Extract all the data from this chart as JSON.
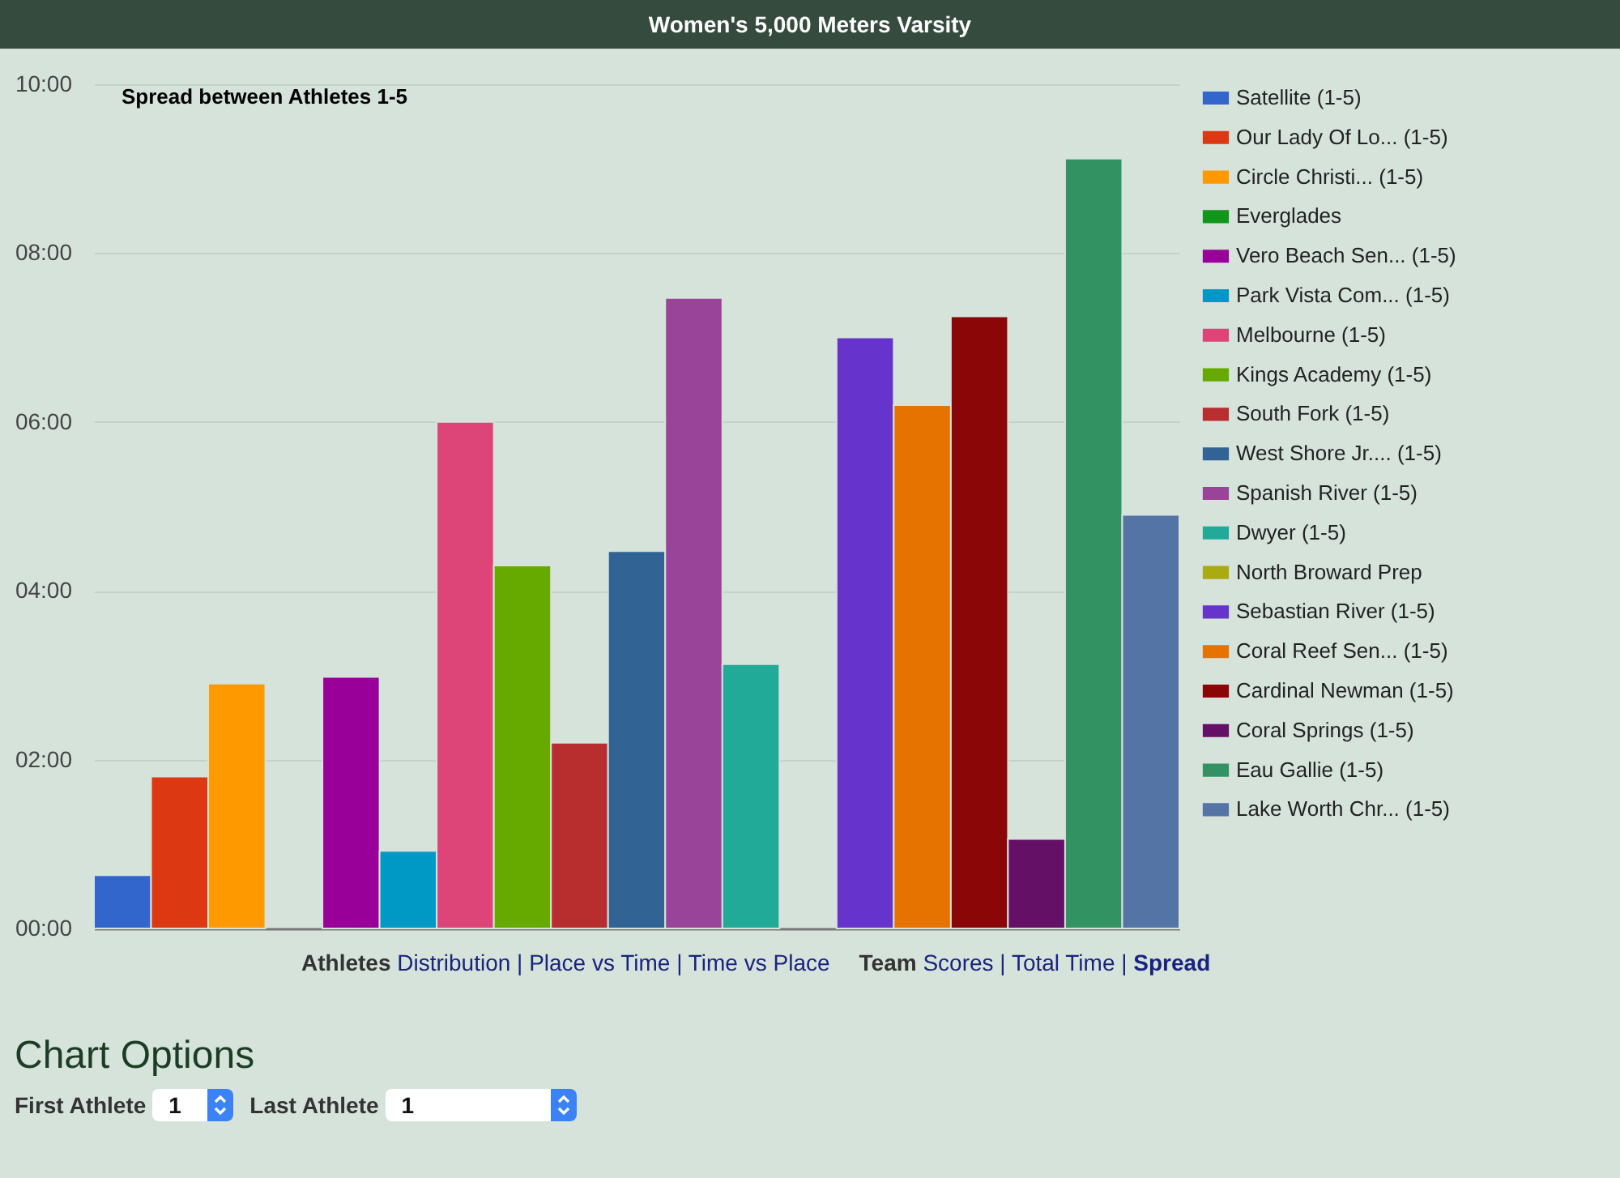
{
  "chart_data": {
    "type": "bar",
    "title": "Women's 5,000 Meters Varsity",
    "subtitle": "Spread between Athletes 1-5",
    "categories": [
      null
    ],
    "series": [
      {
        "name": "Satellite (1-5)",
        "color": "#3366cc",
        "values": [
          0.63
        ]
      },
      {
        "name": "Our Lady Of Lo... (1-5)",
        "color": "#dc3912",
        "values": [
          1.8
        ]
      },
      {
        "name": "Circle Christi... (1-5)",
        "color": "#ff9900",
        "values": [
          2.9
        ]
      },
      {
        "name": "Everglades",
        "color": "#109618",
        "values": [
          null
        ]
      },
      {
        "name": "Vero Beach Sen... (1-5)",
        "color": "#990099",
        "values": [
          2.98
        ]
      },
      {
        "name": "Park Vista Com... (1-5)",
        "color": "#0099c6",
        "values": [
          0.92
        ]
      },
      {
        "name": "Melbourne (1-5)",
        "color": "#dd4477",
        "values": [
          6.0
        ]
      },
      {
        "name": "Kings Academy (1-5)",
        "color": "#66aa00",
        "values": [
          4.3
        ]
      },
      {
        "name": "South Fork (1-5)",
        "color": "#b82e2e",
        "values": [
          2.2
        ]
      },
      {
        "name": "West Shore Jr.... (1-5)",
        "color": "#316395",
        "values": [
          4.47
        ]
      },
      {
        "name": "Spanish River (1-5)",
        "color": "#994499",
        "values": [
          7.47
        ]
      },
      {
        "name": "Dwyer (1-5)",
        "color": "#22aa99",
        "values": [
          3.13
        ]
      },
      {
        "name": "North Broward Prep",
        "color": "#aaaa11",
        "values": [
          null
        ]
      },
      {
        "name": "Sebastian River (1-5)",
        "color": "#6633cc",
        "values": [
          7.0
        ]
      },
      {
        "name": "Coral Reef Sen... (1-5)",
        "color": "#e67300",
        "values": [
          6.2
        ]
      },
      {
        "name": "Cardinal Newman (1-5)",
        "color": "#8b0707",
        "values": [
          7.25
        ]
      },
      {
        "name": "Coral Springs (1-5)",
        "color": "#651067",
        "values": [
          1.06
        ]
      },
      {
        "name": "Eau Gallie (1-5)",
        "color": "#329262",
        "values": [
          9.12
        ]
      },
      {
        "name": "Lake Worth Chr... (1-5)",
        "color": "#5574a6",
        "values": [
          4.9
        ]
      }
    ],
    "ylim": [
      0,
      10
    ],
    "yticks": [
      {
        "value": 0,
        "label": "00:00"
      },
      {
        "value": 2,
        "label": "02:00"
      },
      {
        "value": 4,
        "label": "04:00"
      },
      {
        "value": 6,
        "label": "06:00"
      },
      {
        "value": 8,
        "label": "08:00"
      },
      {
        "value": 10,
        "label": "10:00"
      }
    ],
    "grid": "y",
    "legend": "right",
    "tick_labels": "y",
    "annotations": [
      "Athletes",
      "Distribution | Place vs Time | Time vs Place",
      "Team",
      "Scores | Total Time |",
      "Spread",
      "Chart Options",
      "First Athlete",
      "1",
      "Last Athlete",
      "1"
    ]
  }
}
